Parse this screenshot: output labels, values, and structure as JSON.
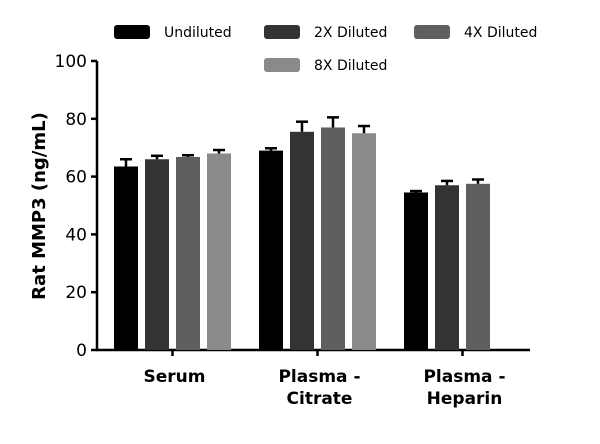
{
  "chart_data": {
    "type": "bar",
    "title": "",
    "xlabel": "",
    "ylabel": "Rat  MMP3 (ng/mL)",
    "ylim": [
      0,
      100
    ],
    "yticks": [
      0,
      20,
      40,
      60,
      80,
      100
    ],
    "categories": [
      [
        "Serum"
      ],
      [
        "Plasma -",
        "Citrate"
      ],
      [
        "Plasma -",
        "Heparin"
      ]
    ],
    "series": [
      {
        "name": "Undiluted",
        "color": "#000000",
        "values": [
          63.5,
          69.0,
          54.5
        ],
        "errors": [
          2.5,
          0.8,
          0.5
        ]
      },
      {
        "name": "2X Diluted",
        "color": "#333333",
        "values": [
          66.0,
          75.5,
          57.0
        ],
        "errors": [
          1.2,
          3.5,
          1.5
        ]
      },
      {
        "name": "4X Diluted",
        "color": "#5f5f5f",
        "values": [
          66.8,
          77.0,
          57.5
        ],
        "errors": [
          0.6,
          3.5,
          1.5
        ]
      },
      {
        "name": "8X Diluted",
        "color": "#8a8a8a",
        "values": [
          68.0,
          75.0,
          null
        ],
        "errors": [
          1.2,
          2.5,
          null
        ]
      }
    ],
    "legend_position": "top",
    "grid": false
  }
}
